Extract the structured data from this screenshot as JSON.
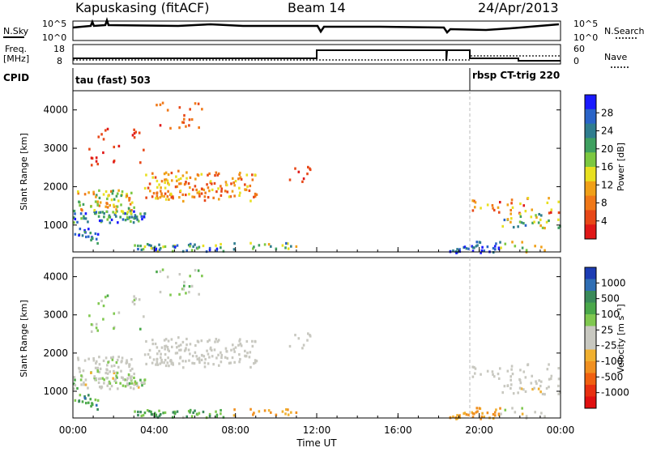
{
  "header": {
    "station": "Kapuskasing (fitACF)",
    "beam": "Beam 14",
    "date": "24/Apr/2013"
  },
  "strips": {
    "nsky_label": "N.Sky",
    "nsky_ticks": [
      "10^5",
      "10^0"
    ],
    "nsearch_label": "N.Search",
    "nsearch_ticks": [
      "10^5",
      "10^0"
    ],
    "freq_label_line1": "Freq.",
    "freq_label_line2": "[MHz]",
    "freq_ticks": [
      "18",
      "8"
    ],
    "nave_label": "Nave",
    "nave_ticks": [
      "60",
      "0"
    ],
    "cpid_label": "CPID",
    "cpid_mode1": "tau (fast) 503",
    "cpid_mode2": "rbsp CT-trig 220"
  },
  "chart_data": [
    {
      "type": "heatmap",
      "name": "power",
      "ylabel": "Slant Range [km]",
      "yticks": [
        "4000",
        "3000",
        "2000",
        "1000"
      ],
      "yrange": [
        300,
        4500
      ],
      "colorbar_label": "Power [dB]",
      "colorbar_ticks": [
        "28",
        "24",
        "20",
        "16",
        "12",
        "8",
        "4"
      ],
      "colorbar_colors": [
        "#1a1aff",
        "#2a64c8",
        "#2f7d8f",
        "#3fa060",
        "#7cc840",
        "#e8e020",
        "#f0a018",
        "#f07818",
        "#e84818",
        "#e01818"
      ]
    },
    {
      "type": "heatmap",
      "name": "velocity",
      "ylabel": "Slant Range [km]",
      "yticks": [
        "4000",
        "3000",
        "2000",
        "1000"
      ],
      "yrange": [
        300,
        4500
      ],
      "colorbar_label": "Velocity [m s⁻¹]",
      "colorbar_ticks": [
        "1000",
        "500",
        "100",
        "25",
        "-25",
        "-100",
        "-500",
        "-1000"
      ],
      "colorbar_colors": [
        "#1c3cb4",
        "#2f6eb4",
        "#3a8a5a",
        "#4aa84a",
        "#80c850",
        "#c8c8c0",
        "#c8c8c0",
        "#f0b030",
        "#f09020",
        "#f06010",
        "#e83010",
        "#e01010"
      ]
    }
  ],
  "time_axis": {
    "label": "Time UT",
    "ticks": [
      "00:00",
      "04:00",
      "08:00",
      "12:00",
      "16:00",
      "20:00",
      "00:00"
    ],
    "hours": [
      0,
      4,
      8,
      12,
      16,
      20,
      24
    ]
  }
}
